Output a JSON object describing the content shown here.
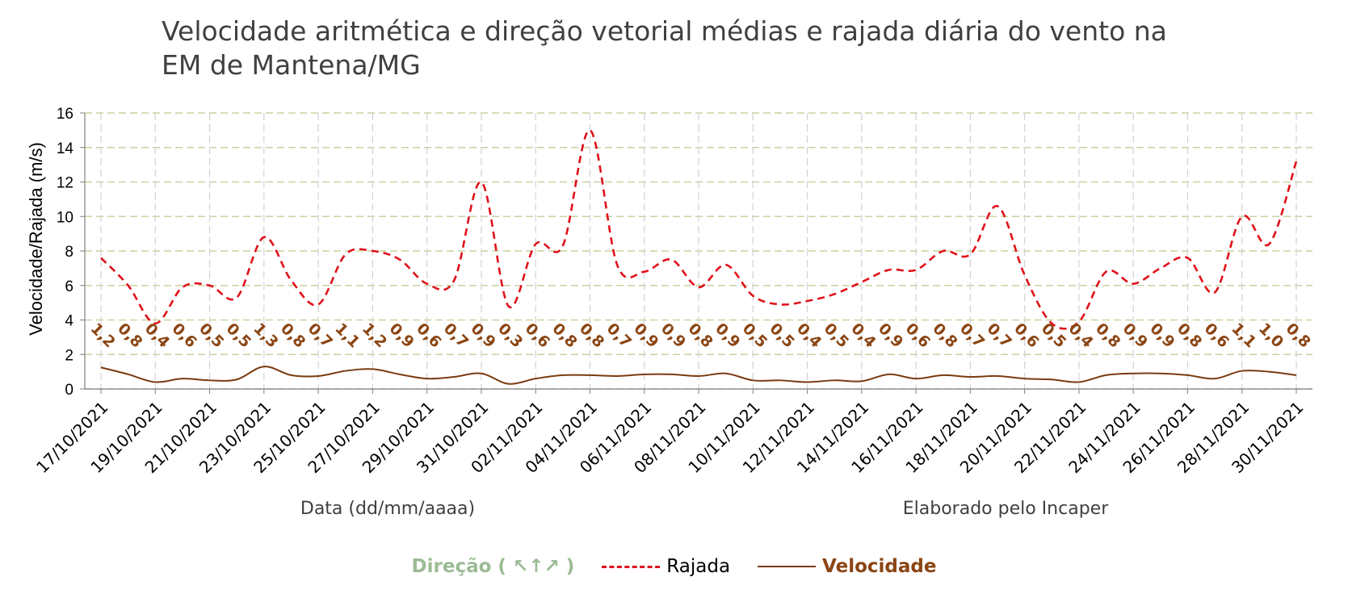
{
  "title": "Velocidade aritmética e direção vetorial médias e rajada diária do vento na EM de Mantena/MG",
  "chart_data": {
    "type": "line",
    "title": "Velocidade aritmética e direção vetorial médias e rajada diária do vento na EM de Mantena/MG",
    "xlabel": "Data (dd/mm/aaaa)",
    "ylabel": "Velocidade/Rajada (m/s)",
    "credit": "Elaborado pelo Incaper",
    "ylim": [
      0,
      16
    ],
    "yticks": [
      "0",
      "2",
      "4",
      "6",
      "8",
      "10",
      "12",
      "14",
      "16"
    ],
    "grid": true,
    "legend_position": "bottom",
    "colors": {
      "rajada": "#e0111a",
      "velocidade": "#7a3b10",
      "labels": "#8B4513",
      "grid": "#c9d3a0",
      "direcao": "#9bbb95"
    },
    "dates": [
      "17/10/2021",
      "18/10/2021",
      "19/10/2021",
      "20/10/2021",
      "21/10/2021",
      "22/10/2021",
      "23/10/2021",
      "24/10/2021",
      "25/10/2021",
      "26/10/2021",
      "27/10/2021",
      "28/10/2021",
      "29/10/2021",
      "30/10/2021",
      "31/10/2021",
      "01/11/2021",
      "02/11/2021",
      "03/11/2021",
      "04/11/2021",
      "05/11/2021",
      "06/11/2021",
      "07/11/2021",
      "08/11/2021",
      "09/11/2021",
      "10/11/2021",
      "11/11/2021",
      "12/11/2021",
      "13/11/2021",
      "14/11/2021",
      "15/11/2021",
      "16/11/2021",
      "17/11/2021",
      "18/11/2021",
      "19/11/2021",
      "20/11/2021",
      "21/11/2021",
      "22/11/2021",
      "23/11/2021",
      "24/11/2021",
      "25/11/2021",
      "26/11/2021",
      "27/11/2021",
      "28/11/2021",
      "29/11/2021",
      "30/11/2021"
    ],
    "x_tick_labels": [
      "17/10/2021",
      "19/10/2021",
      "21/10/2021",
      "23/10/2021",
      "25/10/2021",
      "27/10/2021",
      "29/10/2021",
      "31/10/2021",
      "02/11/2021",
      "04/11/2021",
      "06/11/2021",
      "08/11/2021",
      "10/11/2021",
      "12/11/2021",
      "14/11/2021",
      "16/11/2021",
      "18/11/2021",
      "20/11/2021",
      "22/11/2021",
      "24/11/2021",
      "26/11/2021",
      "28/11/2021",
      "30/11/2021"
    ],
    "series": [
      {
        "name": "Rajada",
        "values": [
          7.6,
          6.0,
          3.8,
          5.9,
          6.0,
          5.3,
          8.8,
          6.3,
          4.9,
          7.8,
          8.0,
          7.5,
          6.1,
          6.3,
          12.0,
          4.8,
          8.4,
          8.3,
          15.0,
          7.2,
          6.8,
          7.5,
          5.9,
          7.2,
          5.4,
          4.9,
          5.1,
          5.5,
          6.2,
          6.9,
          6.9,
          8.0,
          7.8,
          10.6,
          6.6,
          3.8,
          3.9,
          6.8,
          6.1,
          7.0,
          7.6,
          5.6,
          10.0,
          8.4,
          13.2
        ]
      },
      {
        "name": "Velocidade",
        "values": [
          1.25,
          0.85,
          0.4,
          0.6,
          0.5,
          0.55,
          1.3,
          0.8,
          0.75,
          1.05,
          1.15,
          0.85,
          0.6,
          0.7,
          0.9,
          0.3,
          0.6,
          0.8,
          0.8,
          0.75,
          0.85,
          0.85,
          0.75,
          0.9,
          0.5,
          0.5,
          0.4,
          0.5,
          0.45,
          0.85,
          0.6,
          0.8,
          0.7,
          0.75,
          0.6,
          0.55,
          0.4,
          0.8,
          0.9,
          0.9,
          0.8,
          0.6,
          1.05,
          1.0,
          0.8
        ]
      }
    ],
    "data_labels": [
      "1,2",
      "0,8",
      "0,4",
      "0,6",
      "0,5",
      "0,5",
      "1,3",
      "0,8",
      "0,7",
      "1,1",
      "1,2",
      "0,9",
      "0,6",
      "0,7",
      "0,9",
      "0,3",
      "0,6",
      "0,8",
      "0,8",
      "0,7",
      "0,9",
      "0,9",
      "0,8",
      "0,9",
      "0,5",
      "0,5",
      "0,4",
      "0,5",
      "0,4",
      "0,9",
      "0,6",
      "0,8",
      "0,7",
      "0,7",
      "0,6",
      "0,5",
      "0,4",
      "0,8",
      "0,9",
      "0,9",
      "0,8",
      "0,6",
      "1,1",
      "1,0",
      "0,8"
    ]
  },
  "legend": {
    "direcao": "Direção (",
    "direcao_arrows": "↖↑↗",
    "direcao_close": ")",
    "rajada": "Rajada",
    "velocidade": "Velocidade"
  }
}
